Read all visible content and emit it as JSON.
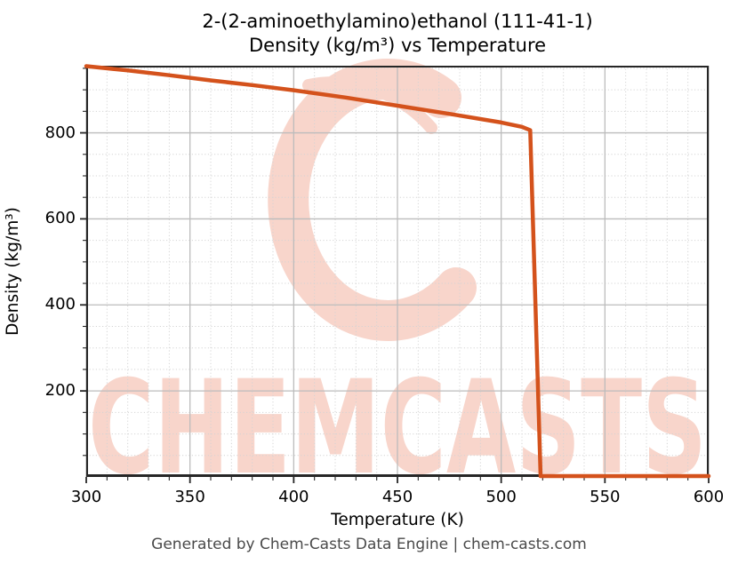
{
  "title": {
    "line1": "2-(2-aminoethylamino)ethanol (111-41-1)",
    "line2": "Density (kg/m³) vs Temperature"
  },
  "chart_data": {
    "type": "line",
    "title": "2-(2-aminoethylamino)ethanol (111-41-1) Density (kg/m³) vs Temperature",
    "xlabel": "Temperature (K)",
    "ylabel": "Density (kg/m³)",
    "xlim": [
      300,
      600
    ],
    "ylim": [
      0,
      956
    ],
    "xticks": [
      300,
      350,
      400,
      450,
      500,
      550,
      600
    ],
    "yticks": [
      200,
      400,
      600,
      800
    ],
    "x_minor_step": 10,
    "y_minor_step": 50,
    "grid": true,
    "legend_position": "none",
    "series": [
      {
        "name": "Density",
        "color": "#d4521c",
        "points": [
          [
            300,
            955
          ],
          [
            320,
            945
          ],
          [
            340,
            934
          ],
          [
            360,
            922
          ],
          [
            380,
            911
          ],
          [
            400,
            899
          ],
          [
            425,
            882
          ],
          [
            450,
            863
          ],
          [
            475,
            844
          ],
          [
            500,
            824
          ],
          [
            510,
            814
          ],
          [
            514,
            806
          ],
          [
            519,
            2
          ],
          [
            540,
            2
          ],
          [
            570,
            2
          ],
          [
            600,
            2
          ]
        ]
      }
    ]
  },
  "watermark": {
    "text": "CHEMCASTS",
    "logo": "chemcasts-c-brush-logo",
    "color": "#f8d5cb"
  },
  "footer": {
    "text": "Generated by Chem-Casts Data Engine | chem-casts.com"
  },
  "style": {
    "grid_major_color": "#bcbcbc",
    "grid_minor_color": "#d4d4d4",
    "spine_color": "#262626"
  }
}
